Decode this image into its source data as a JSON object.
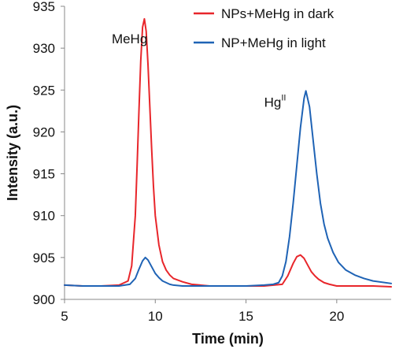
{
  "chart_data": {
    "type": "line",
    "xlabel": "Time (min)",
    "ylabel": "Intensity (a.u.)",
    "xlim": [
      5,
      23
    ],
    "ylim": [
      900,
      935
    ],
    "xticks": [
      5,
      10,
      15,
      20
    ],
    "yticks": [
      900,
      905,
      910,
      915,
      920,
      925,
      930,
      935
    ],
    "grid": false,
    "legend_position": "top-right",
    "annotations": [
      {
        "text": "MeHg",
        "x": 7.6,
        "y": 930.6
      },
      {
        "text": "Hg",
        "sup": "II",
        "x": 16.0,
        "y": 923.0
      }
    ],
    "series": [
      {
        "name": "NPs+MeHg in dark",
        "color": "#e8262b",
        "x": [
          5,
          6,
          7,
          8,
          8.5,
          8.7,
          8.9,
          9.0,
          9.1,
          9.2,
          9.3,
          9.4,
          9.5,
          9.6,
          9.7,
          9.8,
          9.9,
          10.0,
          10.2,
          10.4,
          10.6,
          10.8,
          11.0,
          11.5,
          12,
          13,
          14,
          15,
          16,
          17,
          17.3,
          17.6,
          17.8,
          18.0,
          18.2,
          18.4,
          18.6,
          18.8,
          19.0,
          19.3,
          19.6,
          20,
          20.5,
          21,
          22,
          23
        ],
        "y": [
          901.7,
          901.6,
          901.6,
          901.7,
          902.2,
          904.0,
          910.0,
          916.0,
          922.5,
          928.5,
          932.5,
          933.5,
          932.0,
          928.0,
          923.0,
          918.0,
          913.5,
          910.0,
          906.5,
          904.5,
          903.5,
          902.9,
          902.5,
          902.1,
          901.8,
          901.6,
          901.6,
          901.6,
          901.6,
          901.8,
          902.8,
          904.3,
          905.1,
          905.3,
          904.9,
          904.1,
          903.3,
          902.8,
          902.4,
          902.0,
          901.8,
          901.6,
          901.6,
          901.6,
          901.6,
          901.5
        ]
      },
      {
        "name": "NP+MeHg in light",
        "color": "#1f63b5",
        "x": [
          5,
          6,
          7,
          8,
          8.6,
          8.9,
          9.1,
          9.3,
          9.45,
          9.6,
          9.8,
          10.0,
          10.2,
          10.4,
          10.6,
          10.8,
          11.0,
          11.5,
          12,
          13,
          14,
          15,
          16,
          16.5,
          16.8,
          17.0,
          17.2,
          17.4,
          17.6,
          17.8,
          18.0,
          18.2,
          18.3,
          18.5,
          18.7,
          18.9,
          19.1,
          19.3,
          19.5,
          19.8,
          20.1,
          20.5,
          21.0,
          21.5,
          22.0,
          23.0
        ],
        "y": [
          901.7,
          901.6,
          901.6,
          901.6,
          901.8,
          902.5,
          903.6,
          904.6,
          905.0,
          904.7,
          903.9,
          903.1,
          902.6,
          902.2,
          902.0,
          901.8,
          901.7,
          901.6,
          901.6,
          901.6,
          901.6,
          901.6,
          901.7,
          901.8,
          902.0,
          902.8,
          904.5,
          907.5,
          911.5,
          916.0,
          920.5,
          924.0,
          924.9,
          923.0,
          919.0,
          915.0,
          911.5,
          909.0,
          907.3,
          905.6,
          904.4,
          903.5,
          902.9,
          902.5,
          902.2,
          901.9
        ]
      }
    ]
  }
}
